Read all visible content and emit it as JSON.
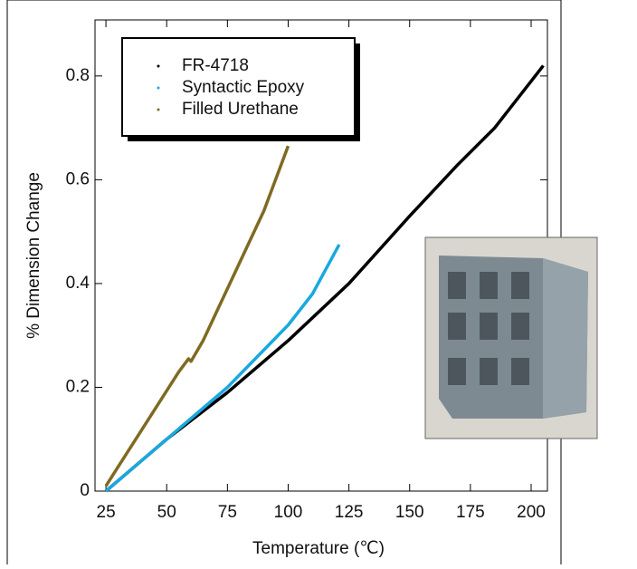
{
  "chart_data": {
    "type": "line",
    "x_label": "Temperature (℃)",
    "y_label": "% Dimension Change",
    "xlim": [
      20.5,
      206.7
    ],
    "xticks": [
      25,
      50,
      75,
      100,
      125,
      150,
      175,
      200
    ],
    "ylim": [
      0,
      0.908
    ],
    "yticks": [
      0,
      0.2,
      0.4,
      0.6,
      0.8
    ],
    "legend": "upper left",
    "series": [
      {
        "name": "FR-4718",
        "color": "#000000",
        "x": [
          25,
          50,
          75,
          100,
          125,
          150,
          170,
          185,
          205
        ],
        "values": [
          0,
          0.1,
          0.19,
          0.29,
          0.4,
          0.53,
          0.63,
          0.7,
          0.82
        ]
      },
      {
        "name": "Syntactic Epoxy",
        "color": "#1aa8e0",
        "x": [
          25,
          50,
          75,
          100,
          110,
          121
        ],
        "values": [
          0,
          0.1,
          0.2,
          0.32,
          0.38,
          0.475
        ]
      },
      {
        "name": "Filled Urethane",
        "color": "#7f6a22",
        "x": [
          25,
          40,
          55,
          59,
          60,
          65,
          75,
          90,
          100
        ],
        "values": [
          0.01,
          0.12,
          0.23,
          0.255,
          0.25,
          0.29,
          0.39,
          0.54,
          0.665
        ]
      }
    ]
  }
}
